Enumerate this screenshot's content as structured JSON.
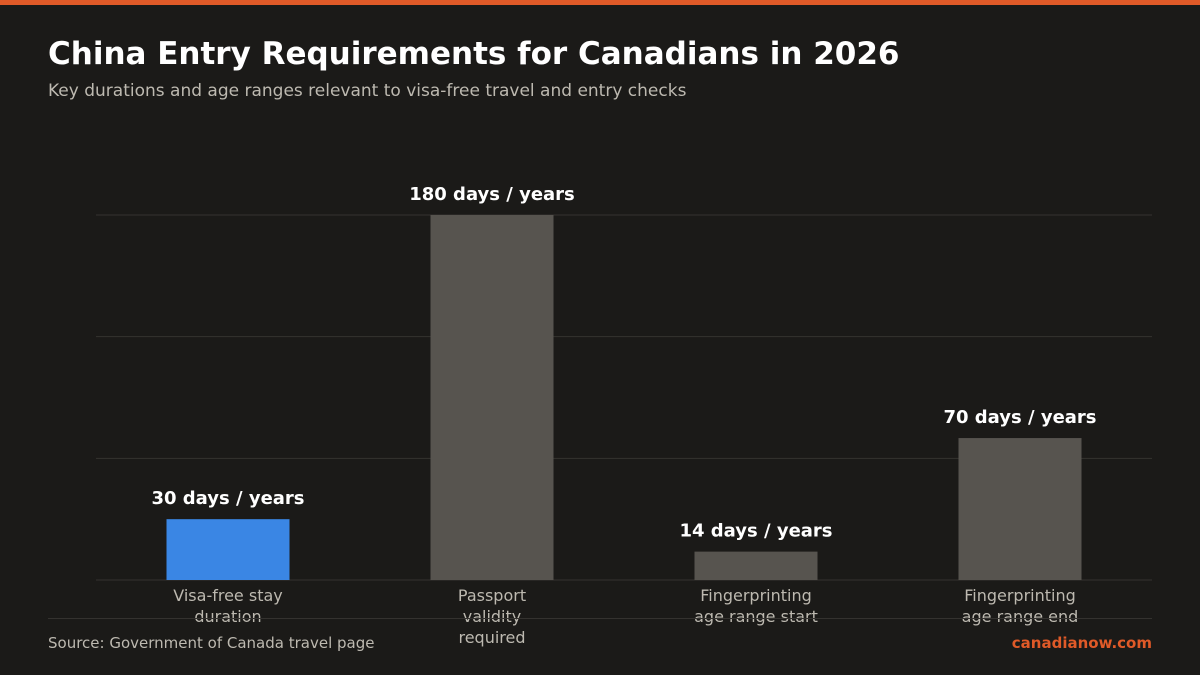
{
  "header": {
    "title": "China Entry Requirements for Canadians in 2026",
    "subtitle": "Key durations and age ranges relevant to visa-free travel and entry checks"
  },
  "footer": {
    "source": "Source: Government of Canada travel page",
    "brand": "canadianow.com"
  },
  "colors": {
    "accent": "#e05a28",
    "highlight_bar": "#3a86e4",
    "default_bar": "#57544f",
    "grid": "#35332f",
    "category_text": "#bdb9b0",
    "value_text": "#ffffff"
  },
  "chart_data": {
    "type": "bar",
    "title": "China Entry Requirements for Canadians in 2026",
    "subtitle": "Key durations and age ranges relevant to visa-free travel and entry checks",
    "categories": [
      [
        "Visa-free stay",
        "duration"
      ],
      [
        "Passport",
        "validity",
        "required"
      ],
      [
        "Fingerprinting",
        "age range start"
      ],
      [
        "Fingerprinting",
        "age range end"
      ]
    ],
    "values": [
      30,
      180,
      14,
      70
    ],
    "data_labels": [
      "30 days / years",
      "180 days / years",
      "14 days / years",
      "70 days / years"
    ],
    "highlight_index": 0,
    "ylim": [
      0,
      180
    ],
    "grid": true,
    "gridlines": [
      0,
      60,
      120,
      180
    ],
    "legend": "none"
  }
}
